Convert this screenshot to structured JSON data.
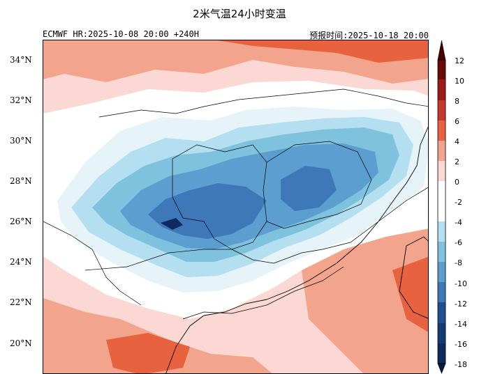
{
  "title": "2米气温24小时变温",
  "subtitle_left": "ECMWF HR:2025-10-08 20:00 +240H",
  "subtitle_right": "预报时间:2025-10-18 20:00",
  "latitude_labels": [
    "34°N",
    "32°N",
    "30°N",
    "28°N",
    "26°N",
    "24°N",
    "22°N",
    "20°N"
  ],
  "colorbar": {
    "ticks": [
      "12",
      "10",
      "8",
      "6",
      "4",
      "2",
      "0",
      "-2",
      "-4",
      "-6",
      "-8",
      "-10",
      "-12",
      "-14",
      "-16",
      "-18"
    ],
    "colors": [
      "#e8623f",
      "#f2a58c",
      "#fbd8d3",
      "#ffffff",
      "#e6f4fa",
      "#b3dff0",
      "#7fc2de",
      "#5c9ecf",
      "#3e78b8",
      "#0f2a5e"
    ]
  }
}
